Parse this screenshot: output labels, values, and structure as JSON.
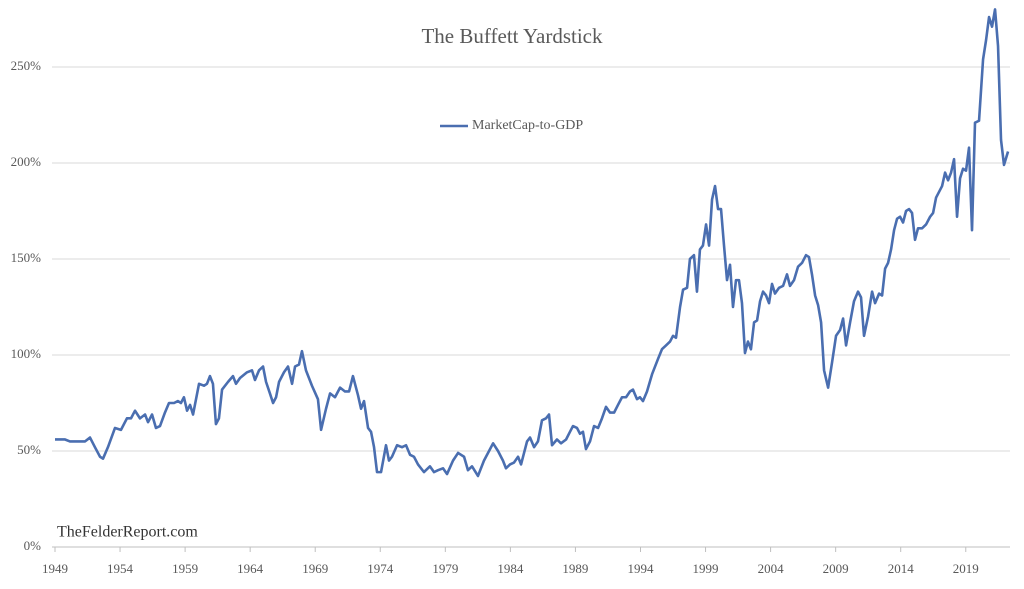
{
  "chart_data": {
    "type": "line",
    "title": "The Buffett Yardstick",
    "annotation": "TheFelderReport.com",
    "legend": "top",
    "grid": true,
    "xlim": [
      1949,
      2022.4
    ],
    "xticks": [
      1949,
      1954,
      1959,
      1964,
      1969,
      1974,
      1979,
      1984,
      1989,
      1994,
      1999,
      2004,
      2009,
      2014,
      2019
    ],
    "ylim": [
      0,
      280
    ],
    "yticks": [
      {
        "value": 0,
        "label": "0%"
      },
      {
        "value": 50,
        "label": "50%"
      },
      {
        "value": 100,
        "label": "100%"
      },
      {
        "value": 150,
        "label": "150%"
      },
      {
        "value": 200,
        "label": "200%"
      },
      {
        "value": 250,
        "label": "250%"
      }
    ],
    "x": [
      1949,
      1949.77,
      1950.15,
      1951.31,
      1951.69,
      1952.07,
      1952.46,
      1952.69,
      1953.07,
      1953.61,
      1954.07,
      1954.53,
      1954.84,
      1955.15,
      1955.53,
      1955.92,
      1956.15,
      1956.46,
      1956.76,
      1957.07,
      1957.45,
      1957.76,
      1958.15,
      1958.45,
      1958.68,
      1958.91,
      1959.15,
      1959.38,
      1959.61,
      1960.07,
      1960.45,
      1960.68,
      1960.91,
      1961.14,
      1961.37,
      1961.6,
      1961.84,
      1962.3,
      1962.68,
      1962.91,
      1963.22,
      1963.76,
      1964.14,
      1964.37,
      1964.68,
      1964.99,
      1965.22,
      1965.52,
      1965.76,
      1965.99,
      1966.22,
      1966.6,
      1966.91,
      1967.22,
      1967.45,
      1967.75,
      1967.98,
      1968.29,
      1968.75,
      1969.21,
      1969.45,
      1969.83,
      1970.14,
      1970.52,
      1970.91,
      1971.29,
      1971.6,
      1971.9,
      1972.29,
      1972.52,
      1972.75,
      1973.06,
      1973.29,
      1973.52,
      1973.75,
      1974.06,
      1974.44,
      1974.67,
      1974.9,
      1975.29,
      1975.67,
      1975.98,
      1976.29,
      1976.59,
      1976.9,
      1977.36,
      1977.82,
      1978.13,
      1978.44,
      1978.82,
      1979.13,
      1979.59,
      1979.98,
      1980.44,
      1980.74,
      1981.05,
      1981.51,
      1981.97,
      1982.36,
      1982.67,
      1983.05,
      1983.43,
      1983.66,
      1983.97,
      1984.28,
      1984.59,
      1984.82,
      1985.28,
      1985.51,
      1985.82,
      1986.12,
      1986.43,
      1986.74,
      1986.97,
      1987.2,
      1987.58,
      1987.89,
      1988.28,
      1988.58,
      1988.81,
      1989.12,
      1989.35,
      1989.58,
      1989.81,
      1990.12,
      1990.43,
      1990.74,
      1991.04,
      1991.35,
      1991.66,
      1991.97,
      1992.27,
      1992.58,
      1992.89,
      1993.19,
      1993.42,
      1993.73,
      1993.96,
      1994.19,
      1994.5,
      1994.89,
      1995.35,
      1995.65,
      1995.96,
      1996.27,
      1996.5,
      1996.73,
      1997.04,
      1997.27,
      1997.58,
      1997.8,
      1998.11,
      1998.34,
      1998.57,
      1998.8,
      1999.04,
      1999.27,
      1999.5,
      1999.73,
      1999.96,
      2000.19,
      2000.42,
      2000.65,
      2000.88,
      2001.11,
      2001.34,
      2001.57,
      2001.8,
      2002.03,
      2002.26,
      2002.49,
      2002.73,
      2002.96,
      2003.19,
      2003.42,
      2003.65,
      2003.88,
      2004.11,
      2004.34,
      2004.65,
      2004.96,
      2005.26,
      2005.49,
      2005.8,
      2006.11,
      2006.42,
      2006.72,
      2006.95,
      2007.18,
      2007.42,
      2007.65,
      2007.88,
      2008.11,
      2008.42,
      2008.72,
      2009.03,
      2009.34,
      2009.57,
      2009.8,
      2010.11,
      2010.41,
      2010.72,
      2010.95,
      2011.18,
      2011.49,
      2011.8,
      2012.03,
      2012.34,
      2012.57,
      2012.8,
      2013.03,
      2013.26,
      2013.49,
      2013.72,
      2013.95,
      2014.18,
      2014.41,
      2014.64,
      2014.87,
      2015.1,
      2015.33,
      2015.64,
      2015.95,
      2016.26,
      2016.49,
      2016.72,
      2016.95,
      2017.18,
      2017.41,
      2017.64,
      2017.87,
      2018.1,
      2018.33,
      2018.56,
      2018.79,
      2019.02,
      2019.25,
      2019.48,
      2019.71,
      2020.02,
      2020.33,
      2020.56,
      2020.79,
      2021.02,
      2021.25,
      2021.48,
      2021.71,
      2021.94,
      2022.25
    ],
    "series": [
      {
        "name": "MarketCap-to-GDP",
        "color": "#4a6eb0",
        "values": [
          56,
          56,
          55,
          55,
          57,
          52,
          47,
          46,
          52,
          62,
          61,
          67,
          67,
          71,
          67,
          69,
          65,
          69,
          62,
          63,
          70,
          75,
          75,
          76,
          75,
          78,
          71,
          74,
          69,
          85,
          84,
          85,
          89,
          85,
          64,
          67,
          82,
          86,
          89,
          85,
          88,
          91,
          92,
          87,
          92,
          94,
          86,
          80,
          75,
          78,
          86,
          91,
          94,
          85,
          94,
          95,
          102,
          92,
          84,
          77,
          61,
          72,
          80,
          78,
          83,
          81,
          81,
          89,
          79,
          72,
          76,
          62,
          60,
          52,
          39,
          39,
          53,
          45,
          47,
          53,
          52,
          53,
          48,
          47,
          43,
          39,
          42,
          39,
          40,
          41,
          38,
          45,
          49,
          47,
          40,
          42,
          37,
          45,
          50,
          54,
          50,
          45,
          41,
          43,
          44,
          47,
          43,
          55,
          57,
          52,
          55,
          66,
          67,
          69,
          53,
          56,
          54,
          56,
          60,
          63,
          62,
          59,
          60,
          51,
          55,
          63,
          62,
          67,
          73,
          70,
          70,
          74,
          78,
          78,
          81,
          82,
          77,
          78,
          76,
          81,
          90,
          98,
          103,
          105,
          107,
          110,
          109,
          125,
          134,
          135,
          150,
          152,
          133,
          155,
          157,
          168,
          157,
          181,
          188,
          176,
          176,
          157,
          139,
          147,
          125,
          139,
          139,
          127,
          101,
          107,
          103,
          117,
          118,
          128,
          133,
          131,
          127,
          137,
          132,
          135,
          136,
          142,
          136,
          139,
          146,
          148,
          152,
          151,
          142,
          131,
          126,
          117,
          92,
          83,
          96,
          110,
          113,
          119,
          105,
          117,
          128,
          133,
          130,
          110,
          120,
          133,
          127,
          132,
          131,
          145,
          148,
          155,
          165,
          171,
          172,
          169,
          175,
          176,
          174,
          160,
          166,
          166,
          168,
          172,
          174,
          182,
          185,
          188,
          195,
          191,
          195,
          202,
          172,
          192,
          197,
          196,
          208,
          165,
          221,
          222,
          254,
          264,
          276,
          271,
          280,
          261,
          212,
          199,
          206
        ]
      }
    ]
  }
}
